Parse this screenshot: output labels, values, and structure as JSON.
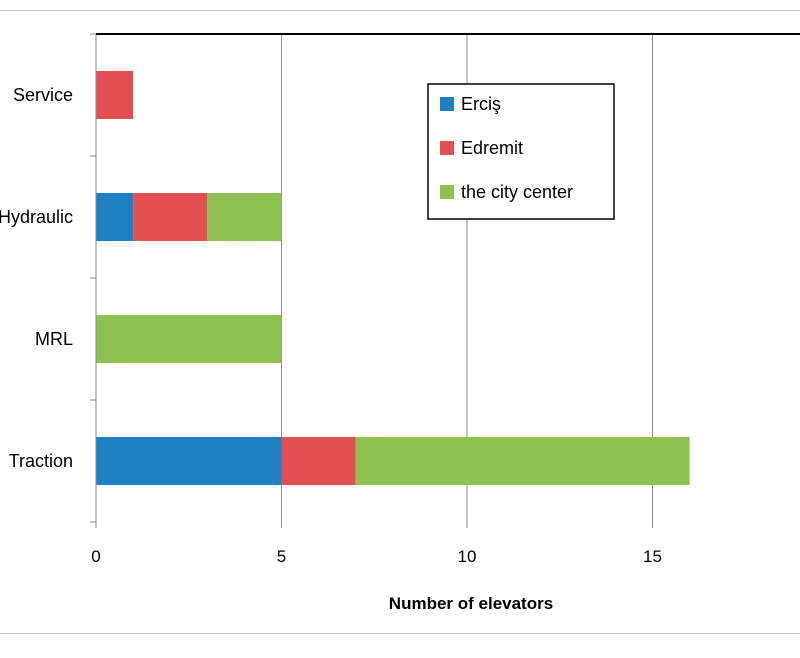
{
  "chart_data": {
    "type": "bar",
    "orientation": "horizontal",
    "stacked": true,
    "categories": [
      "Traction",
      "MRL",
      "Hydraulic",
      "Service"
    ],
    "series": [
      {
        "name": "Erciş",
        "values": [
          5,
          0,
          1,
          0
        ],
        "color": "#1f7fc4"
      },
      {
        "name": "Edremit",
        "values": [
          2,
          0,
          2,
          1
        ],
        "color": "#e35052"
      },
      {
        "name": "the city center",
        "values": [
          9,
          5,
          2,
          0
        ],
        "color": "#8dc152"
      }
    ],
    "xlabel": "Number of elevators",
    "xlim": [
      0,
      20
    ],
    "xticks": [
      0,
      5,
      10,
      15
    ],
    "grid": true,
    "legend_position": "top-right"
  }
}
